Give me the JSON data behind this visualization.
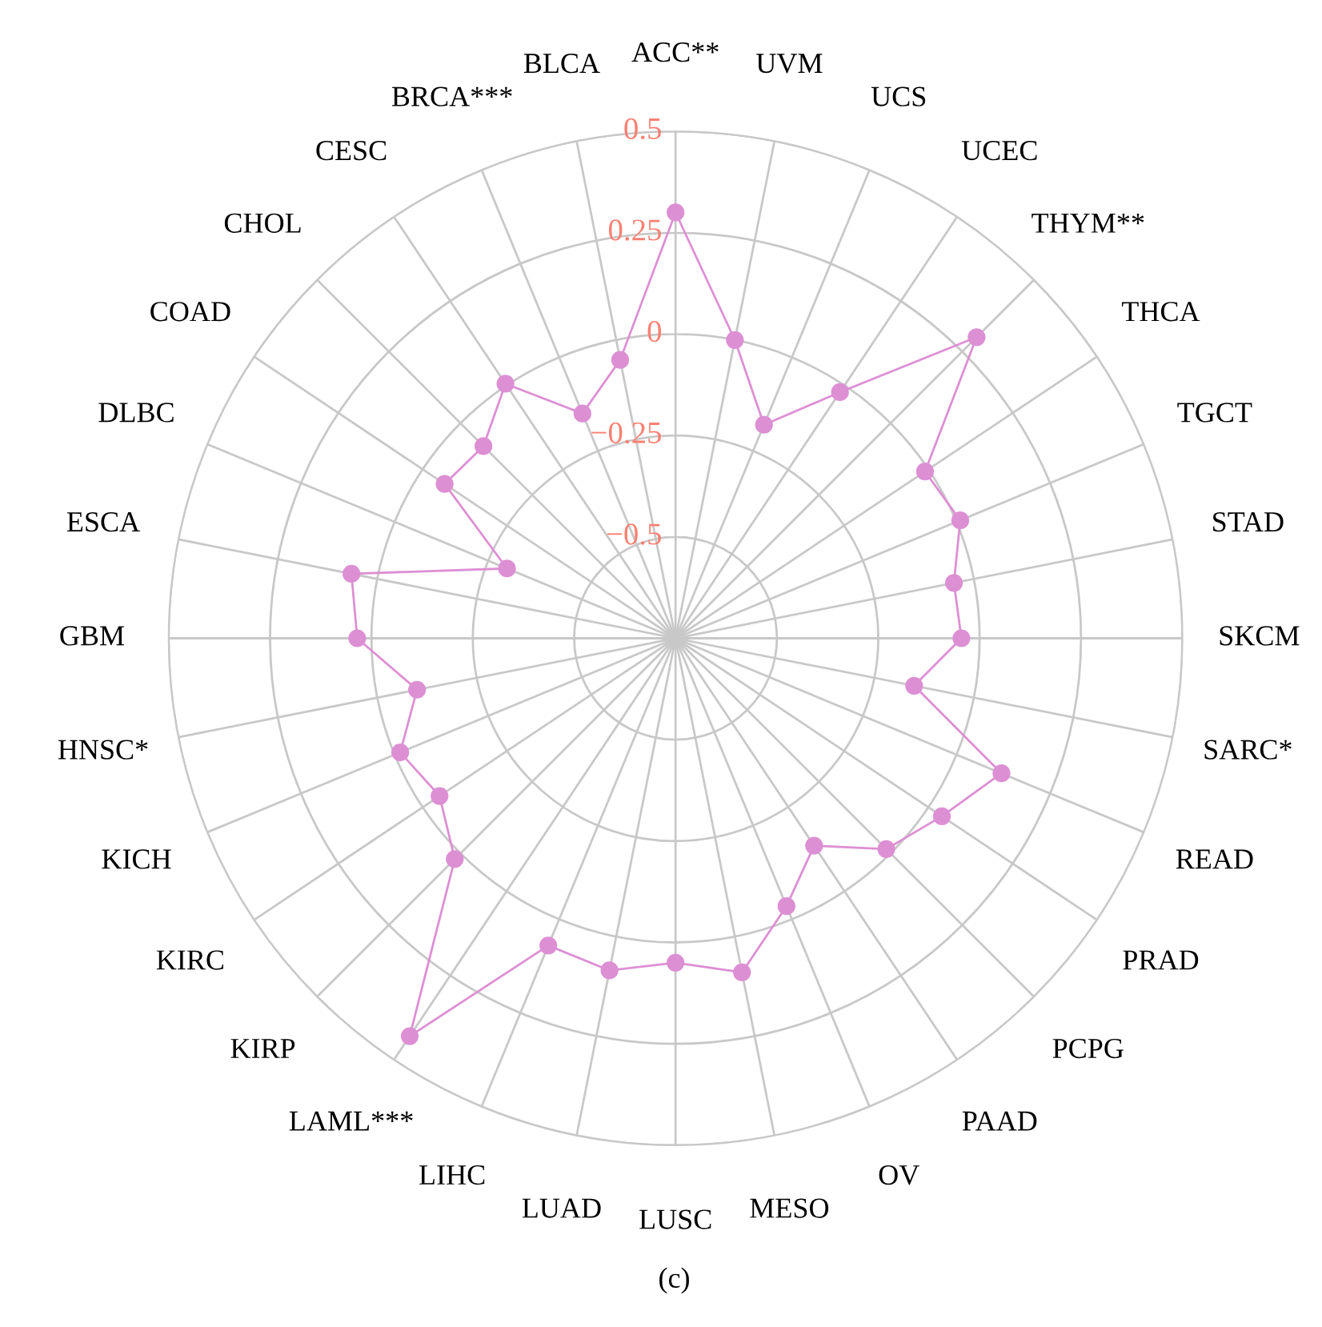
{
  "chart_data": {
    "type": "radar",
    "categories": [
      "ACC**",
      "UVM",
      "UCS",
      "UCEC",
      "THYM**",
      "THCA",
      "TGCT",
      "STAD",
      "SKCM",
      "SARC*",
      "READ",
      "PRAD",
      "PCPG",
      "PAAD",
      "OV",
      "MESO",
      "LUSC",
      "LUAD",
      "LIHC",
      "LAML***",
      "KIRP",
      "KIRC",
      "KICH",
      "HNSC*",
      "GBM",
      "ESCA",
      "DLBC",
      "COAD",
      "CHOL",
      "CESC",
      "BRCA***",
      "BLCA"
    ],
    "series": [
      {
        "color": "#dd8fd4",
        "values": [
          0.3,
          0,
          -0.18,
          -0.02,
          0.3,
          -0.01,
          0.01,
          -0.05,
          -0.045,
          -0.15,
          0.12,
          0.04,
          -0.015,
          -0.135,
          -0.035,
          0.09,
          0.05,
          0.085,
          0.07,
          0.43,
          0.02,
          -0.05,
          -0.015,
          -0.1,
          0.035,
          0.065,
          -0.3,
          -0.065,
          -0.08,
          0.005,
          -0.15,
          -0.05
        ]
      }
    ],
    "ylim": [
      -0.75,
      0.5
    ],
    "yticks": [
      -0.5,
      -0.25,
      0,
      0.25,
      0.5
    ],
    "grid": true,
    "marker": "circle",
    "line_style": "solid",
    "annotations": [
      "(c)"
    ]
  }
}
